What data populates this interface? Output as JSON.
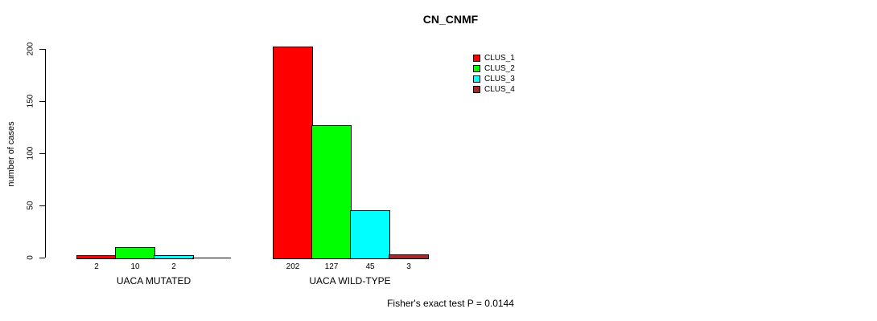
{
  "title": "CN_CNMF",
  "footnote": "Fisher's exact test P = 0.0144",
  "chart_data": {
    "type": "bar",
    "title": "CN_CNMF",
    "ylabel": "number of cases",
    "xlabel": "",
    "ylim": [
      0,
      200
    ],
    "yticks": [
      0,
      50,
      100,
      150,
      200
    ],
    "grid": false,
    "legend_position": "top-right",
    "legend": [
      {
        "label": "CLUS_1",
        "color": "#FF0000"
      },
      {
        "label": "CLUS_2",
        "color": "#00FF00"
      },
      {
        "label": "CLUS_3",
        "color": "#00FFFF"
      },
      {
        "label": "CLUS_4",
        "color": "#A52A2A"
      }
    ],
    "categories": [
      "UACA MUTATED",
      "UACA WILD-TYPE"
    ],
    "series": [
      {
        "name": "CLUS_1",
        "color": "#FF0000",
        "values": [
          2,
          202
        ]
      },
      {
        "name": "CLUS_2",
        "color": "#00FF00",
        "values": [
          10,
          127
        ]
      },
      {
        "name": "CLUS_3",
        "color": "#00FFFF",
        "values": [
          2,
          45
        ]
      },
      {
        "name": "CLUS_4",
        "color": "#A52A2A",
        "values": [
          0,
          3
        ]
      }
    ],
    "bar_value_labels_shown": true,
    "show_zero_value_labels": false,
    "annotation": "Fisher's exact test P = 0.0144"
  }
}
